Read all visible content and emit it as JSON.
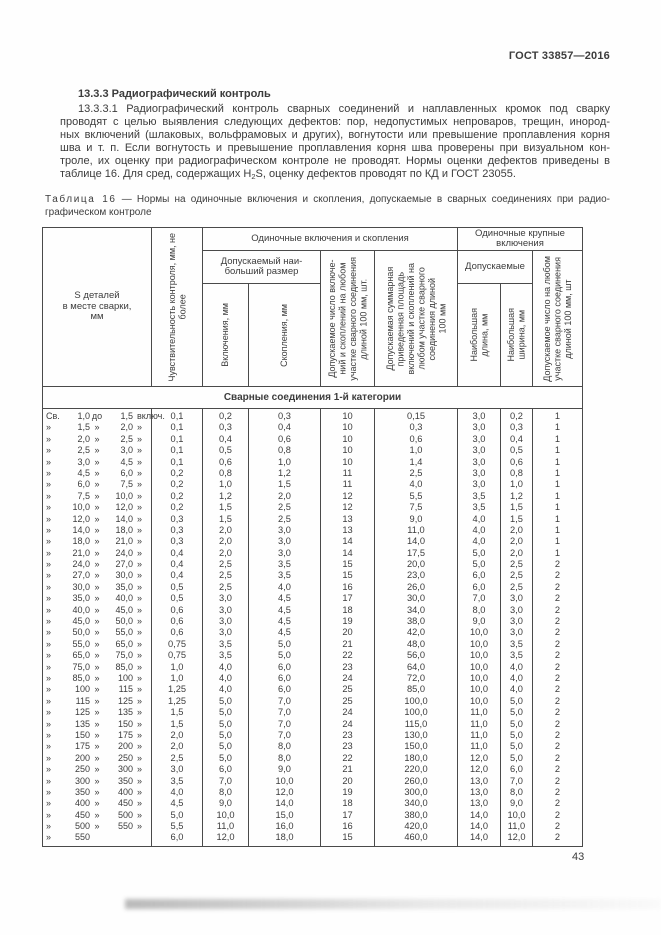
{
  "doc": {
    "ref": "ГОСТ 33857—2016",
    "page_number": "43"
  },
  "section": {
    "heading": "13.3.3  Радиографический контроль",
    "para_lines": [
      "13.3.3.1 Радиографический контроль сварных соединений и наплавленных кромок под сварку",
      "проводят с целью выявления следующих дефектов: пор, недопустимых непроваров, трещин, инород-",
      "ных включений (шлаковых, вольфрамовых и других), вогнутости или превышение проплавления корня",
      "шва и т. п. Если вогнутость и превышение проплавления корня шва проверены при визуальном кон-",
      "троле, их оценку при радиографическом контроле не проводят. Нормы оценки дефектов приведены в"
    ],
    "para_last": {
      "pre": "таблице 16. Для сред, содержащих H",
      "sub": "2",
      "post": "S, оценку дефектов проводят по КД и ГОСТ 23055."
    }
  },
  "table": {
    "caption": {
      "label": "Таблица 16",
      "line1_rest": "— Нормы на одиночные включения и скопления, допускаемые в сварных соединениях при радио-",
      "line2": "графическом контроле"
    },
    "head": {
      "col_s": "S деталей\nв месте сварки,\nмм",
      "col_sensitivity": "Чувствительность контроля, мм, не\nболее",
      "group_single": "Одиночные включения и скопления",
      "group_large": "Одиночные крупные\nвключения",
      "sub_max_size": "Допускаемый наи-\nбольший размер",
      "col_inclusions": "Включения, мм",
      "col_clusters": "Скопления, мм",
      "col_count_single": "Допускаемое число включе-\nний и скоплений на любом\nучастке сварного соединения\nдлиной 100 мм, шт.",
      "col_area": "Допускаемая суммарная\nприведенная площадь\nвключений и скоплений на\nлюбом участке сварного\nсоединения длиной\n100 мм",
      "sub_allowed": "Допускаемые",
      "col_max_length": "Наибольшая\nдлина, мм",
      "col_max_width": "Наибольшая\nширина, мм",
      "col_count_large": "Допускаемое число на любом\nучастке сварного соединения\nдлиной 100 мм, шт"
    },
    "category_row": "Сварные соединения 1-й категории",
    "rows": [
      {
        "l": [
          "Св.",
          "1,0",
          "до",
          "1,5",
          "включ."
        ],
        "v": [
          "0,1",
          "0,2",
          "0,3",
          "10",
          "0,15",
          "3,0",
          "0,2",
          "1"
        ]
      },
      {
        "l": [
          "»",
          "1,5",
          "»",
          "2,0",
          "»"
        ],
        "v": [
          "0,1",
          "0,3",
          "0,4",
          "10",
          "0,3",
          "3,0",
          "0,3",
          "1"
        ]
      },
      {
        "l": [
          "»",
          "2,0",
          "»",
          "2,5",
          "»"
        ],
        "v": [
          "0,1",
          "0,4",
          "0,6",
          "10",
          "0,6",
          "3,0",
          "0,4",
          "1"
        ]
      },
      {
        "l": [
          "»",
          "2,5",
          "»",
          "3,0",
          "»"
        ],
        "v": [
          "0,1",
          "0,5",
          "0,8",
          "10",
          "1,0",
          "3,0",
          "0,5",
          "1"
        ]
      },
      {
        "l": [
          "»",
          "3,0",
          "»",
          "4,5",
          "»"
        ],
        "v": [
          "0,1",
          "0,6",
          "1,0",
          "10",
          "1,4",
          "3,0",
          "0,6",
          "1"
        ]
      },
      {
        "l": [
          "»",
          "4,5",
          "»",
          "6,0",
          "»"
        ],
        "v": [
          "0,2",
          "0,8",
          "1,2",
          "11",
          "2,5",
          "3,0",
          "0,8",
          "1"
        ]
      },
      {
        "l": [
          "»",
          "6,0",
          "»",
          "7,5",
          "»"
        ],
        "v": [
          "0,2",
          "1,0",
          "1,5",
          "11",
          "4,0",
          "3,0",
          "1,0",
          "1"
        ]
      },
      {
        "l": [
          "»",
          "7,5",
          "»",
          "10,0",
          "»"
        ],
        "v": [
          "0,2",
          "1,2",
          "2,0",
          "12",
          "5,5",
          "3,5",
          "1,2",
          "1"
        ]
      },
      {
        "l": [
          "»",
          "10,0",
          "»",
          "12,0",
          "»"
        ],
        "v": [
          "0,2",
          "1,5",
          "2,5",
          "12",
          "7,5",
          "3,5",
          "1,5",
          "1"
        ]
      },
      {
        "l": [
          "»",
          "12,0",
          "»",
          "14,0",
          "»"
        ],
        "v": [
          "0,3",
          "1,5",
          "2,5",
          "13",
          "9,0",
          "4,0",
          "1,5",
          "1"
        ]
      },
      {
        "l": [
          "»",
          "14,0",
          "»",
          "18,0",
          "»"
        ],
        "v": [
          "0,3",
          "2,0",
          "3,0",
          "13",
          "11,0",
          "4,0",
          "2,0",
          "1"
        ]
      },
      {
        "l": [
          "»",
          "18,0",
          "»",
          "21,0",
          "»"
        ],
        "v": [
          "0,3",
          "2,0",
          "3,0",
          "14",
          "14,0",
          "4,0",
          "2,0",
          "1"
        ]
      },
      {
        "l": [
          "»",
          "21,0",
          "»",
          "24,0",
          "»"
        ],
        "v": [
          "0,4",
          "2,0",
          "3,0",
          "14",
          "17,5",
          "5,0",
          "2,0",
          "1"
        ]
      },
      {
        "l": [
          "»",
          "24,0",
          "»",
          "27,0",
          "»"
        ],
        "v": [
          "0,4",
          "2,5",
          "3,5",
          "15",
          "20,0",
          "5,0",
          "2,5",
          "2"
        ]
      },
      {
        "l": [
          "»",
          "27,0",
          "»",
          "30,0",
          "»"
        ],
        "v": [
          "0,4",
          "2,5",
          "3,5",
          "15",
          "23,0",
          "6,0",
          "2,5",
          "2"
        ]
      },
      {
        "l": [
          "»",
          "30,0",
          "»",
          "35,0",
          "»"
        ],
        "v": [
          "0,5",
          "2,5",
          "4,0",
          "16",
          "26,0",
          "6,0",
          "2,5",
          "2"
        ]
      },
      {
        "l": [
          "»",
          "35,0",
          "»",
          "40,0",
          "»"
        ],
        "v": [
          "0,5",
          "3,0",
          "4,5",
          "17",
          "30,0",
          "7,0",
          "3,0",
          "2"
        ]
      },
      {
        "l": [
          "»",
          "40,0",
          "»",
          "45,0",
          "»"
        ],
        "v": [
          "0,6",
          "3,0",
          "4,5",
          "18",
          "34,0",
          "8,0",
          "3,0",
          "2"
        ]
      },
      {
        "l": [
          "»",
          "45,0",
          "»",
          "50,0",
          "»"
        ],
        "v": [
          "0,6",
          "3,0",
          "4,5",
          "19",
          "38,0",
          "9,0",
          "3,0",
          "2"
        ]
      },
      {
        "l": [
          "»",
          "50,0",
          "»",
          "55,0",
          "»"
        ],
        "v": [
          "0,6",
          "3,0",
          "4,5",
          "20",
          "42,0",
          "10,0",
          "3,0",
          "2"
        ]
      },
      {
        "l": [
          "»",
          "55,0",
          "»",
          "65,0",
          "»"
        ],
        "v": [
          "0,75",
          "3,5",
          "5,0",
          "21",
          "48,0",
          "10,0",
          "3,5",
          "2"
        ]
      },
      {
        "l": [
          "»",
          "65,0",
          "»",
          "75,0",
          "»"
        ],
        "v": [
          "0,75",
          "3,5",
          "5,0",
          "22",
          "56,0",
          "10,0",
          "3,5",
          "2"
        ]
      },
      {
        "l": [
          "»",
          "75,0",
          "»",
          "85,0",
          "»"
        ],
        "v": [
          "1,0",
          "4,0",
          "6,0",
          "23",
          "64,0",
          "10,0",
          "4,0",
          "2"
        ]
      },
      {
        "l": [
          "»",
          "85,0",
          "»",
          "100",
          "»"
        ],
        "v": [
          "1,0",
          "4,0",
          "6,0",
          "24",
          "72,0",
          "10,0",
          "4,0",
          "2"
        ]
      },
      {
        "l": [
          "»",
          "100",
          "»",
          "115",
          "»"
        ],
        "v": [
          "1,25",
          "4,0",
          "6,0",
          "25",
          "85,0",
          "10,0",
          "4,0",
          "2"
        ]
      },
      {
        "l": [
          "»",
          "115",
          "»",
          "125",
          "»"
        ],
        "v": [
          "1,25",
          "5,0",
          "7,0",
          "25",
          "100,0",
          "10,0",
          "5,0",
          "2"
        ]
      },
      {
        "l": [
          "»",
          "125",
          "»",
          "135",
          "»"
        ],
        "v": [
          "1,5",
          "5,0",
          "7,0",
          "24",
          "100,0",
          "11,0",
          "5,0",
          "2"
        ]
      },
      {
        "l": [
          "»",
          "135",
          "»",
          "150",
          "»"
        ],
        "v": [
          "1,5",
          "5,0",
          "7,0",
          "24",
          "115,0",
          "11,0",
          "5,0",
          "2"
        ]
      },
      {
        "l": [
          "»",
          "150",
          "»",
          "175",
          "»"
        ],
        "v": [
          "2,0",
          "5,0",
          "7,0",
          "23",
          "130,0",
          "11,0",
          "5,0",
          "2"
        ]
      },
      {
        "l": [
          "»",
          "175",
          "»",
          "200",
          "»"
        ],
        "v": [
          "2,0",
          "5,0",
          "8,0",
          "23",
          "150,0",
          "11,0",
          "5,0",
          "2"
        ]
      },
      {
        "l": [
          "»",
          "200",
          "»",
          "250",
          "»"
        ],
        "v": [
          "2,5",
          "5,0",
          "8,0",
          "22",
          "180,0",
          "12,0",
          "5,0",
          "2"
        ]
      },
      {
        "l": [
          "»",
          "250",
          "»",
          "300",
          "»"
        ],
        "v": [
          "3,0",
          "6,0",
          "9,0",
          "21",
          "220,0",
          "12,0",
          "6,0",
          "2"
        ]
      },
      {
        "l": [
          "»",
          "300",
          "»",
          "350",
          "»"
        ],
        "v": [
          "3,5",
          "7,0",
          "10,0",
          "20",
          "260,0",
          "13,0",
          "7,0",
          "2"
        ]
      },
      {
        "l": [
          "»",
          "350",
          "»",
          "400",
          "»"
        ],
        "v": [
          "4,0",
          "8,0",
          "12,0",
          "19",
          "300,0",
          "13,0",
          "8,0",
          "2"
        ]
      },
      {
        "l": [
          "»",
          "400",
          "»",
          "450",
          "»"
        ],
        "v": [
          "4,5",
          "9,0",
          "14,0",
          "18",
          "340,0",
          "13,0",
          "9,0",
          "2"
        ]
      },
      {
        "l": [
          "»",
          "450",
          "»",
          "500",
          "»"
        ],
        "v": [
          "5,0",
          "10,0",
          "15,0",
          "17",
          "380,0",
          "14,0",
          "10,0",
          "2"
        ]
      },
      {
        "l": [
          "»",
          "500",
          "»",
          "550",
          "»"
        ],
        "v": [
          "5,5",
          "11,0",
          "16,0",
          "16",
          "420,0",
          "14,0",
          "11,0",
          "2"
        ]
      },
      {
        "l": [
          "»",
          "550",
          "",
          "",
          ""
        ],
        "v": [
          "6,0",
          "12,0",
          "18,0",
          "15",
          "460,0",
          "14,0",
          "12,0",
          "2"
        ]
      }
    ]
  }
}
